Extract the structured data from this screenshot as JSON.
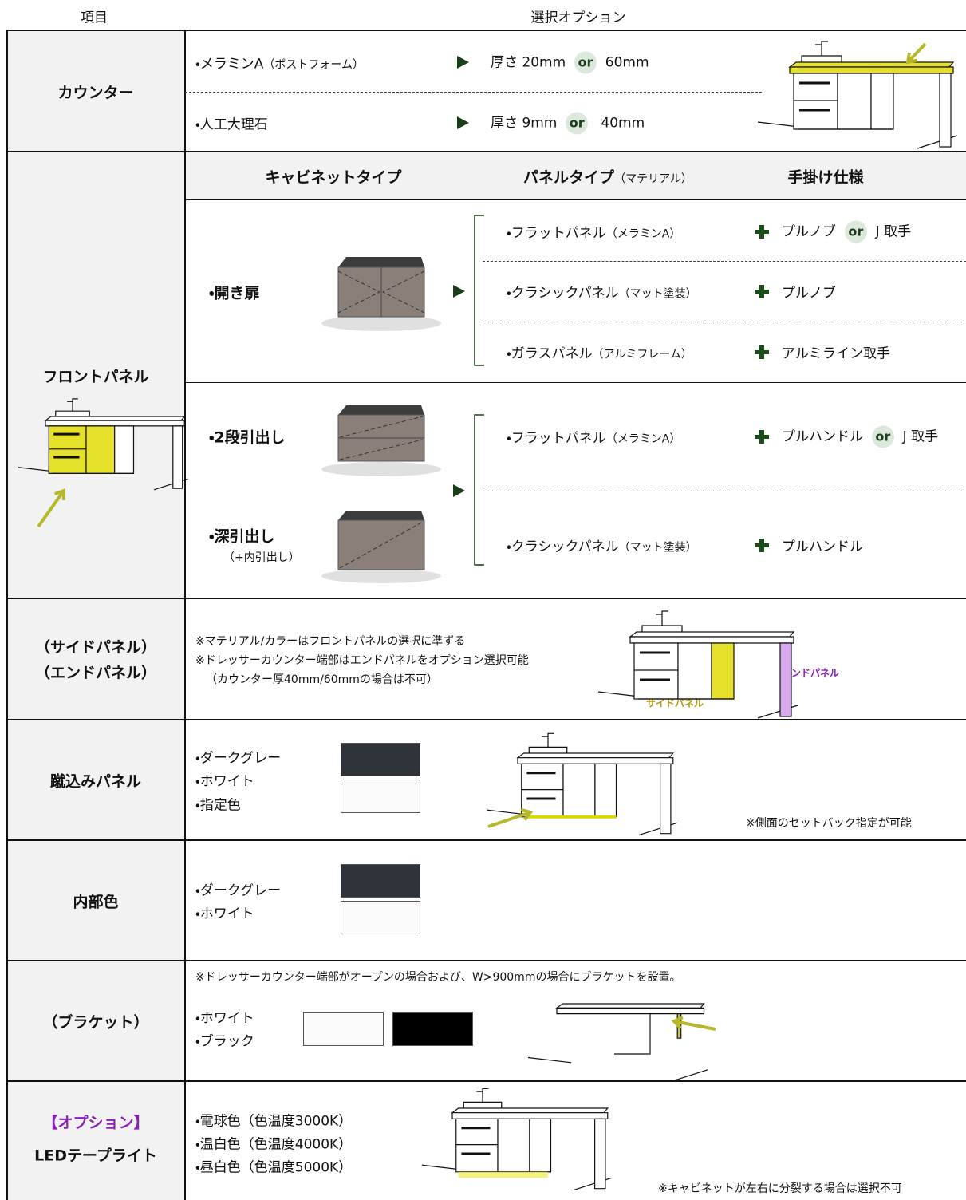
{
  "header": {
    "item": "項目",
    "options": "選択オプション"
  },
  "counter": {
    "label": "カウンター",
    "options": [
      {
        "name": "・メラミンA",
        "note": "（ポストフォーム）",
        "spec": "厚さ 20mm",
        "or": "or",
        "alt": "60mm"
      },
      {
        "name": "・人工大理石",
        "spec": "厚さ 9mm",
        "or": "or",
        "alt": "40mm"
      }
    ]
  },
  "front_panel": {
    "label": "フロントパネル",
    "headers": {
      "cabinet": "キャビネットタイプ",
      "panel": "パネルタイプ",
      "panel_note": "（マテリアル）",
      "handle": "手掛け仕様"
    },
    "groups": [
      {
        "cabinets": [
          {
            "name": "・開き扉"
          }
        ],
        "panels": [
          {
            "name": "・フラットパネル",
            "note": "（メラミンA）",
            "handle": "プルノブ",
            "or": "or",
            "alt": "J 取手"
          },
          {
            "name": "・クラシックパネル",
            "note": "（マット塗装）",
            "handle": "プルノブ"
          },
          {
            "name": "・ガラスパネル",
            "note": "（アルミフレーム）",
            "handle": "アルミライン取手"
          }
        ]
      },
      {
        "cabinets": [
          {
            "name": "・2段引出し"
          },
          {
            "name": "・深引出し",
            "note": "（+内引出し）"
          }
        ],
        "panels": [
          {
            "name": "・フラットパネル",
            "note": "（メラミンA）",
            "handle": "プルハンドル",
            "or": "or",
            "alt": "J 取手"
          },
          {
            "name": "・クラシックパネル",
            "note": "（マット塗装）",
            "handle": "プルハンドル"
          }
        ]
      }
    ]
  },
  "side_panel": {
    "labels": [
      "（サイドパネル）",
      "（エンドパネル）"
    ],
    "notes": [
      "※マテリアル/カラーはフロントパネルの選択に準ずる",
      "※ドレッサーカウンター端部はエンドパネルをオプション選択可能",
      "（カウンター厚40mm/60mmの場合は不可）"
    ],
    "figure_labels": {
      "end": "エンドパネル",
      "side": "サイドパネル"
    }
  },
  "kick_panel": {
    "label": "蹴込みパネル",
    "colors": [
      "・ダークグレー",
      "・ホワイト",
      "・指定色"
    ],
    "note": "※側面のセットバック指定が可能"
  },
  "interior": {
    "label": "内部色",
    "colors": [
      "・ダークグレー",
      "・ホワイト"
    ]
  },
  "bracket": {
    "label": "（ブラケット）",
    "note": "※ドレッサーカウンター端部がオープンの場合および、W>900mmの場合にブラケットを設置。",
    "colors": [
      "・ホワイト",
      "・ブラック"
    ]
  },
  "led": {
    "labels": [
      "【オプション】",
      "LEDテープライト"
    ],
    "colors": [
      "・電球色（色温度3000K）",
      "・温白色（色温度4000K）",
      "・昼白色（色温度5000K）"
    ],
    "note": "※キャビネットが左右に分裂する場合は選択不可"
  }
}
